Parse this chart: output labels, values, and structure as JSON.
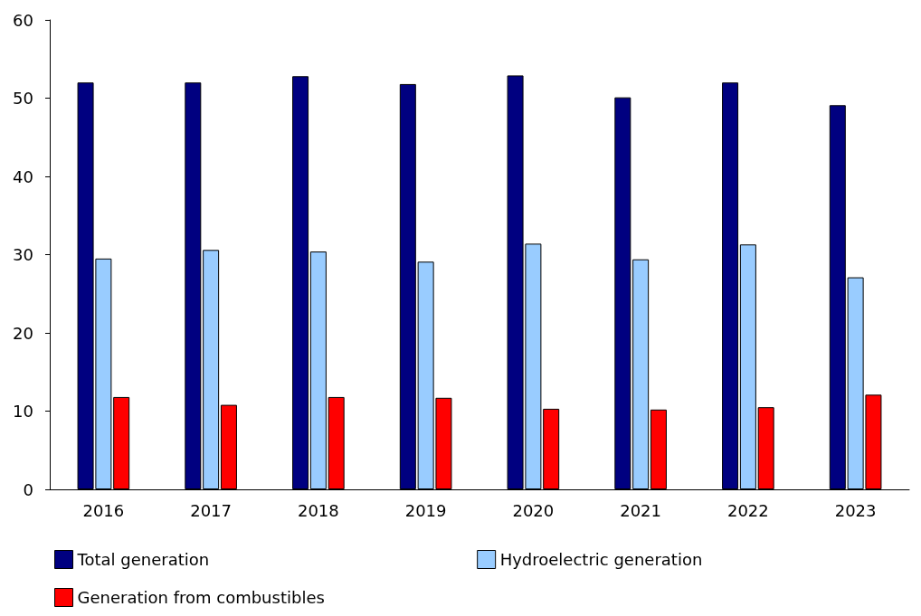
{
  "chart_data": {
    "type": "bar",
    "categories": [
      "2016",
      "2017",
      "2018",
      "2019",
      "2020",
      "2021",
      "2022",
      "2023"
    ],
    "series": [
      {
        "name": "Total generation",
        "color": "#000080",
        "values": [
          52.0,
          52.0,
          52.8,
          51.8,
          52.9,
          50.1,
          52.0,
          49.1
        ]
      },
      {
        "name": "Hydroelectric generation",
        "color": "#99ccff",
        "values": [
          29.5,
          30.6,
          30.4,
          29.1,
          31.4,
          29.4,
          31.3,
          27.1
        ]
      },
      {
        "name": "Generation from combustibles",
        "color": "#ff0000",
        "values": [
          11.8,
          10.8,
          11.8,
          11.7,
          10.3,
          10.2,
          10.5,
          12.1
        ]
      }
    ],
    "ylim": [
      0,
      60
    ],
    "yticks": [
      0,
      10,
      20,
      30,
      40,
      50,
      60
    ],
    "grid": false,
    "legend": "bottom"
  }
}
